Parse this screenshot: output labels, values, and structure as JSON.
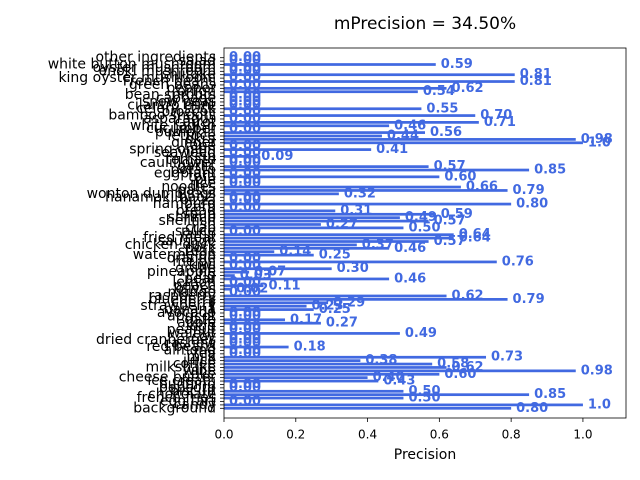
{
  "chart_data": {
    "type": "barh",
    "title": "mPrecision = 34.50%",
    "xlabel": "Precision",
    "color": "#4169e1",
    "xlim": [
      0,
      1.12
    ],
    "xticks": [
      {
        "value": 0,
        "label": "0.0"
      },
      {
        "value": 0.2,
        "label": "0.2"
      },
      {
        "value": 0.4,
        "label": "0.4"
      },
      {
        "value": 0.6,
        "label": "0.6"
      },
      {
        "value": 0.8,
        "label": "0.8"
      },
      {
        "value": 1.0,
        "label": "1.0"
      }
    ],
    "categories": [
      "background",
      "candy",
      "egg tart",
      "french fries",
      "chocolate",
      "biscuit",
      "popcorn",
      "pudding",
      "ice cream",
      "cheese butter",
      "cake",
      "wine",
      "milkshake",
      "coffee",
      "juice",
      "milk",
      "tea",
      "almond",
      "red beans",
      "cashew",
      "dried cranberries",
      "soy",
      "walnut",
      "peanut",
      "egg",
      "apple",
      "date",
      "apricot",
      "avocado",
      "banana",
      "strawberry",
      "cherry",
      "blueberry",
      "raspberry",
      "mango",
      "olives",
      "peach",
      "lemon",
      "pear",
      "fig",
      "pineapple",
      "grape",
      "kiwi",
      "melon",
      "orange",
      "watermelon",
      "steak",
      "pork",
      "chicken duck",
      "sausage",
      "fried meat",
      "lamb",
      "sauce",
      "crab",
      "fish",
      "shellfish",
      "shrimp",
      "soup",
      "bread",
      "corn",
      "hamburg",
      "pizza",
      "hanamaki baozi",
      "wonton dumplings",
      "pasta",
      "noodles",
      "rice",
      "pie",
      "tofu",
      "eggplant",
      "potato",
      "garlic",
      "cauliflower",
      "tomato",
      "kelp",
      "seaweed",
      "spring onion",
      "rape",
      "ginger",
      "okra",
      "lettuce",
      "pumpkin",
      "cucumber",
      "white radish",
      "carrot",
      "asparagus",
      "bamboo shoots",
      "broccoli",
      "celery stick",
      "cilantro mint",
      "snow peas",
      "cabbage",
      "bean sprouts",
      "onion",
      "pepper",
      "green beans",
      "French beans",
      "king oyster mushroom",
      "shiitake",
      "enoki mushroom",
      "oyster mushroom",
      "white button mushroom",
      "salad",
      "other ingredients"
    ],
    "values": [
      0.8,
      1.0,
      0,
      0.5,
      0.85,
      0.5,
      0,
      0,
      0.43,
      0.4,
      0.6,
      0.98,
      0.62,
      0.58,
      0.38,
      0.73,
      0,
      0,
      0.18,
      0,
      0,
      0,
      0.49,
      0,
      0,
      0.27,
      0.17,
      0,
      0,
      0.25,
      0.23,
      0.29,
      0.79,
      0.62,
      0,
      0.02,
      0.11,
      0,
      0.46,
      0.03,
      0.07,
      0.3,
      0,
      0.76,
      0,
      0.25,
      0.14,
      0.46,
      0.37,
      0.57,
      0.64,
      0.64,
      0,
      0.5,
      0.27,
      0.57,
      0.49,
      0.59,
      0.31,
      0,
      0.8,
      0,
      0,
      0.32,
      0.79,
      0.66,
      0,
      0,
      0.6,
      0,
      0.85,
      0.57,
      0,
      0,
      0.09,
      0,
      0.41,
      0,
      1.0,
      0.98,
      0.44,
      0.56,
      0,
      0.46,
      0.71,
      0,
      0.7,
      0,
      0.55,
      0,
      0,
      0,
      0,
      0.54,
      0.62,
      0,
      0.81,
      0,
      0.81,
      0,
      0,
      0.59,
      0,
      0
    ],
    "value_labels": [
      "0.80",
      "1.0",
      "0.00",
      "0.50",
      "0.85",
      "0.50",
      "0.00",
      "0.00",
      "0.43",
      "0.40",
      "0.60",
      "0.98",
      "0.62",
      "0.58",
      "0.38",
      "0.73",
      "0.00",
      "0.00",
      "0.18",
      "0.00",
      "0.00",
      "0.00",
      "0.49",
      "0.00",
      "0.00",
      "0.27",
      "0.17",
      "0.00",
      "0.00",
      "0.25",
      "0.23",
      "0.29",
      "0.79",
      "0.62",
      "0.00",
      "0.02",
      "0.11",
      "0.00",
      "0.46",
      "0.03",
      "0.07",
      "0.30",
      "0.00",
      "0.76",
      "0.00",
      "0.25",
      "0.14",
      "0.46",
      "0.37",
      "0.57",
      "0.64",
      "0.64",
      "0.00",
      "0.50",
      "0.27",
      "0.57",
      "0.49",
      "0.59",
      "0.31",
      "0.00",
      "0.80",
      "0.00",
      "0.00",
      "0.32",
      "0.79",
      "0.66",
      "0.00",
      "0.00",
      "0.60",
      "0.00",
      "0.85",
      "0.57",
      "0.00",
      "0.00",
      "0.09",
      "0.00",
      "0.41",
      "0.00",
      "1.0",
      "0.98",
      "0.44",
      "0.56",
      "0.00",
      "0.46",
      "0.71",
      "0.00",
      "0.70",
      "0.00",
      "0.55",
      "0.00",
      "0.00",
      "0.00",
      "0.00",
      "0.54",
      "0.62",
      "0.00",
      "0.81",
      "0.00",
      "0.81",
      "0.00",
      "0.00",
      "0.59",
      "0.00",
      "0.00"
    ]
  }
}
